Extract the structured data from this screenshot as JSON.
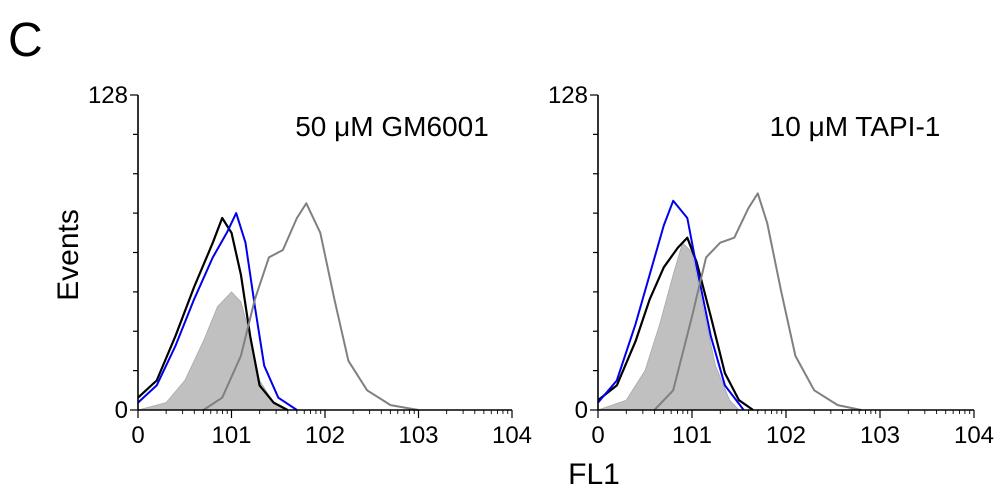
{
  "panel_letter": "C",
  "colors": {
    "filled": "#c0c0c0",
    "black": "#000000",
    "blue": "#0000ee",
    "gray": "#808080"
  },
  "chart_data": [
    {
      "type": "area",
      "title": "50 μM GM6001",
      "xlabel": "FL1",
      "ylabel": "Events",
      "x_scale": "log",
      "xlim": [
        0,
        4
      ],
      "ylim": [
        0,
        128
      ],
      "x_tick_labels": [
        "0",
        "101",
        "102",
        "103",
        "104"
      ],
      "y_tick_labels": [
        "0",
        "128"
      ],
      "grid": false,
      "series": [
        {
          "style": "filled-gray",
          "x": [
            0,
            0.3,
            0.5,
            0.7,
            0.85,
            1.0,
            1.1,
            1.2,
            1.3,
            1.45,
            1.6
          ],
          "values": [
            0,
            3,
            12,
            28,
            42,
            48,
            44,
            30,
            12,
            3,
            0
          ]
        },
        {
          "style": "black-line",
          "x": [
            0,
            0.2,
            0.4,
            0.6,
            0.8,
            0.9,
            1.0,
            1.1,
            1.2,
            1.3,
            1.45,
            1.6
          ],
          "values": [
            5,
            12,
            30,
            50,
            68,
            78,
            72,
            55,
            30,
            10,
            3,
            0
          ]
        },
        {
          "style": "blue-line",
          "x": [
            0,
            0.2,
            0.4,
            0.6,
            0.8,
            0.95,
            1.05,
            1.15,
            1.25,
            1.35,
            1.5,
            1.7
          ],
          "values": [
            3,
            10,
            26,
            45,
            62,
            72,
            80,
            68,
            42,
            18,
            5,
            0
          ]
        },
        {
          "style": "gray-line",
          "x": [
            0.7,
            0.9,
            1.1,
            1.25,
            1.4,
            1.55,
            1.7,
            1.8,
            1.95,
            2.1,
            2.25,
            2.45,
            2.7,
            3.0
          ],
          "values": [
            0,
            5,
            22,
            45,
            62,
            65,
            78,
            84,
            72,
            45,
            20,
            8,
            2,
            0
          ]
        }
      ]
    },
    {
      "type": "area",
      "title": "10 μM TAPI-1",
      "xlabel": "FL1",
      "ylabel": "Events",
      "x_scale": "log",
      "xlim": [
        0,
        4
      ],
      "ylim": [
        0,
        128
      ],
      "x_tick_labels": [
        "0",
        "101",
        "102",
        "103",
        "104"
      ],
      "y_tick_labels": [
        "0",
        "128"
      ],
      "grid": false,
      "series": [
        {
          "style": "filled-gray",
          "x": [
            0,
            0.3,
            0.5,
            0.65,
            0.8,
            0.9,
            1.0,
            1.1,
            1.25,
            1.4,
            1.5
          ],
          "values": [
            0,
            4,
            16,
            34,
            55,
            68,
            64,
            45,
            18,
            4,
            0
          ]
        },
        {
          "style": "black-line",
          "x": [
            0,
            0.2,
            0.4,
            0.55,
            0.7,
            0.85,
            0.95,
            1.05,
            1.2,
            1.35,
            1.5,
            1.65
          ],
          "values": [
            4,
            10,
            28,
            45,
            58,
            66,
            70,
            60,
            38,
            15,
            4,
            0
          ]
        },
        {
          "style": "blue-line",
          "x": [
            0,
            0.2,
            0.4,
            0.55,
            0.7,
            0.8,
            0.95,
            1.05,
            1.2,
            1.35,
            1.55
          ],
          "values": [
            3,
            12,
            35,
            55,
            75,
            85,
            78,
            58,
            30,
            10,
            0
          ]
        },
        {
          "style": "gray-line",
          "x": [
            0.6,
            0.8,
            1.0,
            1.15,
            1.3,
            1.45,
            1.6,
            1.7,
            1.8,
            1.95,
            2.1,
            2.3,
            2.55,
            2.8
          ],
          "values": [
            0,
            8,
            38,
            62,
            68,
            70,
            82,
            88,
            76,
            48,
            22,
            8,
            2,
            0
          ]
        }
      ]
    }
  ]
}
